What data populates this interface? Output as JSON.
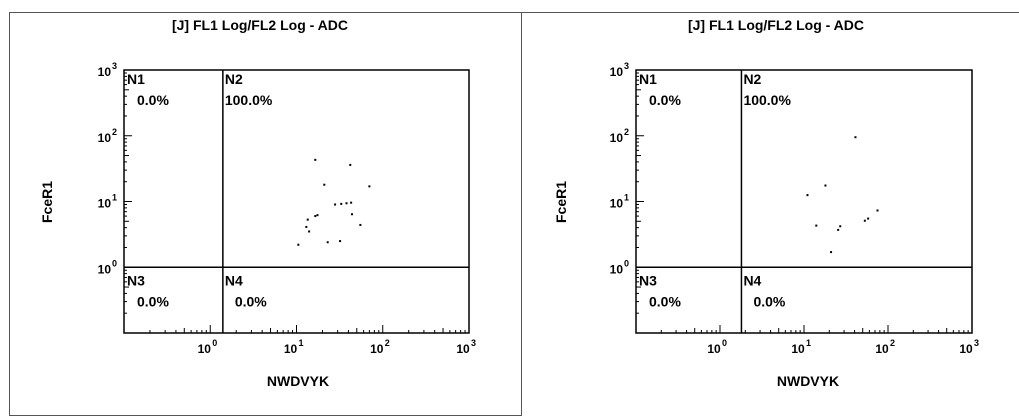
{
  "chart_data": [
    {
      "type": "scatter",
      "title": "[J] FL1 Log/FL2 Log - ADC",
      "xlabel": "NWDVYK",
      "ylabel": "FceR1",
      "xscale": "log",
      "yscale": "log",
      "xlim": [
        0.1,
        1000
      ],
      "ylim": [
        0.1,
        1000
      ],
      "x_ticks": [
        {
          "base": "10",
          "exp": "0"
        },
        {
          "base": "10",
          "exp": "1"
        },
        {
          "base": "10",
          "exp": "2"
        },
        {
          "base": "10",
          "exp": "3"
        }
      ],
      "y_ticks": [
        {
          "base": "10",
          "exp": "0"
        },
        {
          "base": "10",
          "exp": "1"
        },
        {
          "base": "10",
          "exp": "2"
        },
        {
          "base": "10",
          "exp": "3"
        }
      ],
      "quadrant_gate": {
        "x": 1.4,
        "y": 1.0
      },
      "quadrants": [
        {
          "name": "N1",
          "value": "0.0%",
          "position": "top-left"
        },
        {
          "name": "N2",
          "value": "100.0%",
          "position": "top-right"
        },
        {
          "name": "N3",
          "value": "0.0%",
          "position": "bottom-left"
        },
        {
          "name": "N4",
          "value": "0.0%",
          "position": "bottom-right"
        }
      ],
      "points": [
        {
          "x": 16.5,
          "y": 43
        },
        {
          "x": 42,
          "y": 36
        },
        {
          "x": 21,
          "y": 18
        },
        {
          "x": 70,
          "y": 17
        },
        {
          "x": 17.5,
          "y": 6.2
        },
        {
          "x": 16.5,
          "y": 6.0
        },
        {
          "x": 13.5,
          "y": 5.3
        },
        {
          "x": 33,
          "y": 9.2
        },
        {
          "x": 38,
          "y": 9.4
        },
        {
          "x": 43,
          "y": 9.6
        },
        {
          "x": 28,
          "y": 9.0
        },
        {
          "x": 44,
          "y": 6.4
        },
        {
          "x": 13,
          "y": 4.1
        },
        {
          "x": 14,
          "y": 3.5
        },
        {
          "x": 55,
          "y": 4.4
        },
        {
          "x": 10.5,
          "y": 2.2
        },
        {
          "x": 23,
          "y": 2.4
        },
        {
          "x": 32,
          "y": 2.5
        }
      ]
    },
    {
      "type": "scatter",
      "title": "[J] FL1 Log/FL2 Log - ADC",
      "xlabel": "NWDVYK",
      "ylabel": "FceR1",
      "xscale": "log",
      "yscale": "log",
      "xlim": [
        0.1,
        1000
      ],
      "ylim": [
        0.1,
        1000
      ],
      "x_ticks": [
        {
          "base": "10",
          "exp": "0"
        },
        {
          "base": "10",
          "exp": "1"
        },
        {
          "base": "10",
          "exp": "2"
        },
        {
          "base": "10",
          "exp": "3"
        }
      ],
      "y_ticks": [
        {
          "base": "10",
          "exp": "0"
        },
        {
          "base": "10",
          "exp": "1"
        },
        {
          "base": "10",
          "exp": "2"
        },
        {
          "base": "10",
          "exp": "3"
        }
      ],
      "quadrant_gate": {
        "x": 1.8,
        "y": 1.0
      },
      "quadrants": [
        {
          "name": "N1",
          "value": "0.0%",
          "position": "top-left"
        },
        {
          "name": "N2",
          "value": "100.0%",
          "position": "top-right"
        },
        {
          "name": "N3",
          "value": "0.0%",
          "position": "bottom-left"
        },
        {
          "name": "N4",
          "value": "0.0%",
          "position": "bottom-right"
        }
      ],
      "points": [
        {
          "x": 41,
          "y": 95
        },
        {
          "x": 18,
          "y": 17.5
        },
        {
          "x": 11,
          "y": 12.5
        },
        {
          "x": 75,
          "y": 7.3
        },
        {
          "x": 58,
          "y": 5.5
        },
        {
          "x": 53,
          "y": 5.1
        },
        {
          "x": 27,
          "y": 4.2
        },
        {
          "x": 14,
          "y": 4.3
        },
        {
          "x": 25.5,
          "y": 3.7
        },
        {
          "x": 21,
          "y": 1.7
        }
      ]
    }
  ]
}
